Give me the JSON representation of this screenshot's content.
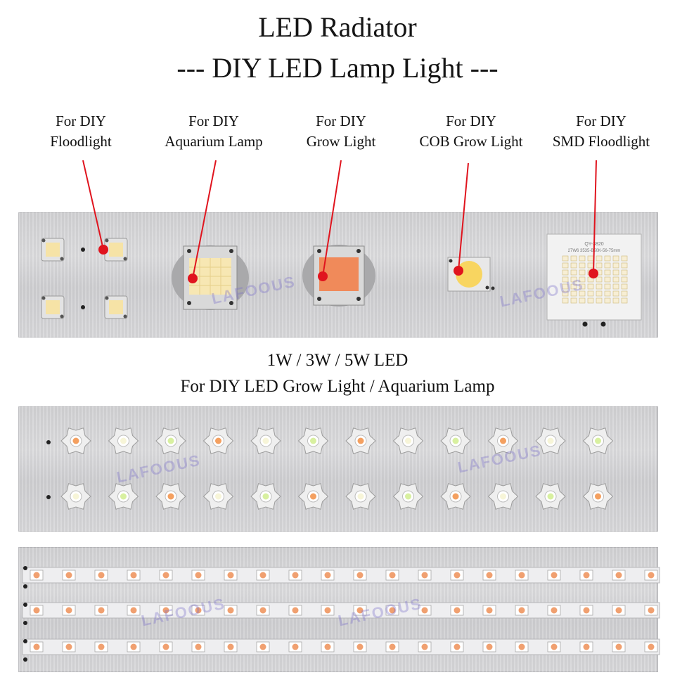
{
  "header": {
    "title": "LED Radiator",
    "subtitle": "--- DIY LED Lamp Light ---"
  },
  "labels": [
    {
      "line1": "For DIY",
      "line2": "Floodlight"
    },
    {
      "line1": "For DIY",
      "line2": "Aquarium Lamp"
    },
    {
      "line1": "For DIY",
      "line2": "Grow Light"
    },
    {
      "line1": "For DIY",
      "line2": "COB Grow Light"
    },
    {
      "line1": "For DIY",
      "line2": "SMD Floodlight"
    }
  ],
  "middle": {
    "line1": "1W / 3W / 5W LED",
    "line2": "For DIY LED Grow Light / Aquarium Lamp"
  },
  "smd_board": {
    "line1": "QY-3820",
    "line2": "27W6 3535-B50K-56-75mm"
  },
  "colors": {
    "pointer": "#e0141e",
    "warm_led": "#f6e3a6",
    "grow_led": "#f08a5a",
    "cob_led": "#f8d560"
  }
}
